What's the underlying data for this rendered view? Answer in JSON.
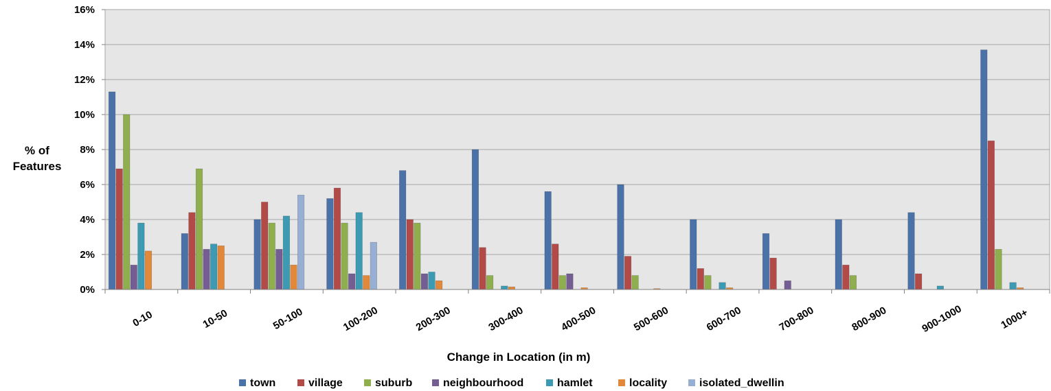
{
  "chart_data": {
    "type": "bar",
    "title": "",
    "xlabel": "Change in Location (in m)",
    "ylabel_lines": [
      "% of",
      "Features"
    ],
    "ylim": [
      0,
      16
    ],
    "y_ticks": [
      "0%",
      "2%",
      "4%",
      "6%",
      "8%",
      "10%",
      "12%",
      "14%",
      "16%"
    ],
    "grid": true,
    "legend_position": "bottom",
    "categories": [
      "0-10",
      "10-50",
      "50-100",
      "100-200",
      "200-300",
      "300-400",
      "400-500",
      "500-600",
      "600-700",
      "700-800",
      "800-900",
      "900-1000",
      "1000+"
    ],
    "series": [
      {
        "name": "town",
        "color": "#4A71A8",
        "values": [
          11.3,
          3.2,
          4.0,
          5.2,
          6.8,
          8.0,
          5.6,
          6.0,
          4.0,
          3.2,
          4.0,
          4.4,
          13.7
        ]
      },
      {
        "name": "village",
        "color": "#B24A48",
        "values": [
          6.9,
          4.4,
          5.0,
          5.8,
          4.0,
          2.4,
          2.6,
          1.9,
          1.2,
          1.8,
          1.4,
          0.9,
          8.5
        ]
      },
      {
        "name": "suburb",
        "color": "#8FAF4F",
        "values": [
          10.0,
          6.9,
          3.8,
          3.8,
          3.8,
          0.8,
          0.8,
          0.8,
          0.8,
          0,
          0.8,
          0,
          2.3
        ]
      },
      {
        "name": "neighbourhood",
        "color": "#745D92",
        "values": [
          1.4,
          2.3,
          2.3,
          0.9,
          0.9,
          0,
          0.9,
          0,
          0,
          0.5,
          0,
          0,
          0
        ]
      },
      {
        "name": "hamlet",
        "color": "#3C9AB3",
        "values": [
          3.8,
          2.6,
          4.2,
          4.4,
          1.0,
          0.2,
          0,
          0,
          0.4,
          0,
          0,
          0.2,
          0.4
        ]
      },
      {
        "name": "locality",
        "color": "#E1883A",
        "values": [
          2.2,
          2.5,
          1.4,
          0.8,
          0.5,
          0.15,
          0.1,
          0.05,
          0.1,
          0,
          0,
          0,
          0.1
        ]
      },
      {
        "name": "isolated_dwellin",
        "color": "#98AFD4",
        "values": [
          0,
          0,
          5.4,
          2.7,
          0,
          0,
          0,
          0,
          0,
          0,
          0,
          0,
          0
        ]
      }
    ]
  }
}
